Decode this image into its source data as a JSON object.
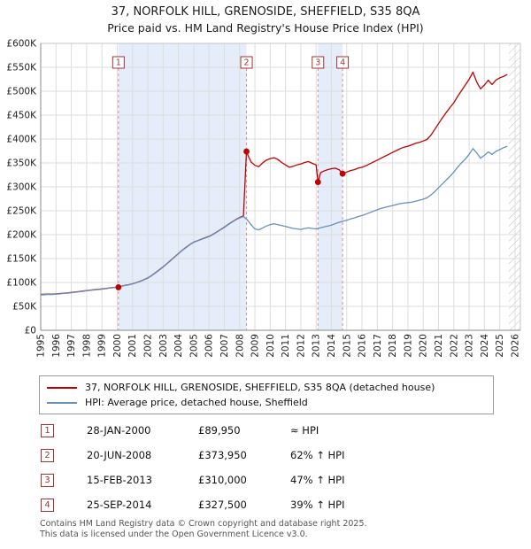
{
  "title": "37, NORFOLK HILL, GRENOSIDE, SHEFFIELD, S35 8QA",
  "subtitle": "Price paid vs. HM Land Registry's House Price Index (HPI)",
  "colors": {
    "property": "#c00000",
    "hpi": "#6590bf",
    "sale_box": "#a33333",
    "band": "#e4edf9",
    "hatch": "#bbbbbb",
    "grid": "#dddddd",
    "dashed_sale_line": "#d89090"
  },
  "chart_data": {
    "type": "line",
    "title": "Price paid vs. HM Land Registry's House Price Index (HPI)",
    "y_unit": "GBP thousands",
    "x_axis": {
      "min": 1995,
      "max": 2026.35,
      "ticks": [
        1995,
        1996,
        1997,
        1998,
        1999,
        2000,
        2001,
        2002,
        2003,
        2004,
        2005,
        2006,
        2007,
        2008,
        2009,
        2010,
        2011,
        2012,
        2013,
        2014,
        2015,
        2016,
        2017,
        2018,
        2019,
        2020,
        2021,
        2022,
        2023,
        2024,
        2025,
        2026
      ]
    },
    "y_axis": {
      "max_k": 600,
      "step_k": 50,
      "tick_labels": [
        "£0",
        "£50K",
        "£100K",
        "£150K",
        "£200K",
        "£250K",
        "£300K",
        "£350K",
        "£400K",
        "£450K",
        "£500K",
        "£550K",
        "£600K"
      ]
    },
    "bands": [
      {
        "from": 2000.08,
        "to": 2008.45
      },
      {
        "from": 2013.12,
        "to": 2014.73
      }
    ],
    "hatch_from": 2025.6,
    "series": [
      {
        "id": "property-price",
        "name": "37, NORFOLK HILL, GRENOSIDE, SHEFFIELD, S35 8QA (detached house)",
        "color": "#c00000",
        "x": [
          1995,
          1995.25,
          1995.5,
          1995.75,
          1996,
          1996.25,
          1996.5,
          1996.75,
          1997,
          1997.25,
          1997.5,
          1997.75,
          1998,
          1998.25,
          1998.5,
          1998.75,
          1999,
          1999.25,
          1999.5,
          1999.75,
          2000.08,
          2000.25,
          2000.5,
          2000.75,
          2001,
          2001.25,
          2001.5,
          2001.75,
          2002,
          2002.25,
          2002.5,
          2002.75,
          2003,
          2003.25,
          2003.5,
          2003.75,
          2004,
          2004.25,
          2004.5,
          2004.75,
          2005,
          2005.25,
          2005.5,
          2005.75,
          2006,
          2006.25,
          2006.5,
          2006.75,
          2007,
          2007.25,
          2007.5,
          2007.75,
          2008,
          2008.25,
          2008.45,
          2008.6,
          2008.75,
          2009,
          2009.25,
          2009.5,
          2009.75,
          2010,
          2010.25,
          2010.5,
          2010.75,
          2011,
          2011.25,
          2011.5,
          2011.75,
          2012,
          2012.25,
          2012.5,
          2012.75,
          2013,
          2013.12,
          2013.3,
          2013.5,
          2013.75,
          2014,
          2014.25,
          2014.5,
          2014.73,
          2015,
          2015.25,
          2015.5,
          2015.75,
          2016,
          2016.25,
          2016.5,
          2016.75,
          2017,
          2017.25,
          2017.5,
          2017.75,
          2018,
          2018.25,
          2018.5,
          2018.75,
          2019,
          2019.25,
          2019.5,
          2019.75,
          2020,
          2020.25,
          2020.5,
          2020.75,
          2021,
          2021.25,
          2021.5,
          2021.75,
          2022,
          2022.25,
          2022.5,
          2022.75,
          2023,
          2023.25,
          2023.5,
          2023.75,
          2024,
          2024.25,
          2024.5,
          2024.75,
          2025,
          2025.25,
          2025.5
        ],
        "values": [
          75,
          75.3,
          75.8,
          75.4,
          76.2,
          76.8,
          77.6,
          78.2,
          79,
          80,
          81,
          82,
          83,
          84,
          84.8,
          85.6,
          86.4,
          87.4,
          88.6,
          89.4,
          89.95,
          92.3,
          93.8,
          95.3,
          97.3,
          99.8,
          102.5,
          106,
          109.5,
          114.5,
          120.5,
          126.5,
          132.5,
          139.5,
          146.5,
          153.5,
          160.5,
          167.5,
          173.5,
          179.5,
          184.5,
          187.5,
          190.5,
          193.5,
          196.5,
          200.5,
          205.5,
          210.5,
          215.5,
          221.5,
          226.5,
          231.5,
          236,
          239,
          373.95,
          362,
          352,
          345,
          342,
          350,
          356,
          359,
          361,
          357,
          351,
          346,
          341,
          343,
          346,
          348,
          351,
          353,
          349,
          346,
          310,
          330,
          333,
          336,
          338,
          339,
          336,
          327.5,
          331,
          334,
          336,
          339,
          341,
          344,
          348,
          352,
          356,
          360,
          364,
          368,
          372,
          376,
          380,
          383,
          385,
          388,
          391,
          393,
          396,
          399,
          408,
          420,
          432,
          444,
          455,
          466,
          476,
          489,
          501,
          513,
          525,
          540,
          519,
          505,
          513,
          523,
          514,
          523,
          528,
          531,
          535
        ]
      },
      {
        "id": "hpi",
        "name": "HPI: Average price, detached house, Sheffield",
        "color": "#6590bf",
        "x_start": 1995,
        "x_step": 0.25,
        "values": [
          74,
          74.5,
          75,
          74.8,
          75.5,
          76.2,
          77,
          77.6,
          78.5,
          79.5,
          80.5,
          81.5,
          82.5,
          83.5,
          84.3,
          85.2,
          86,
          87,
          88.2,
          89.3,
          90.5,
          92,
          93.5,
          95,
          97,
          99.5,
          102,
          105.5,
          109,
          114,
          120,
          126,
          132,
          139,
          146,
          153,
          160,
          167,
          173,
          179,
          184,
          187,
          190,
          193,
          196,
          200,
          205,
          210,
          215,
          221,
          226,
          231,
          235,
          238,
          231,
          221,
          212,
          210,
          214,
          218,
          221,
          223,
          221,
          219,
          217,
          215,
          213,
          212,
          211,
          213,
          214,
          213,
          212,
          214,
          216,
          218,
          220,
          223,
          226,
          228,
          230,
          233,
          235,
          238,
          240,
          243,
          246,
          249,
          252,
          255,
          257,
          259,
          261,
          263,
          265,
          266,
          267,
          268,
          270,
          272,
          274,
          277,
          283,
          290,
          298,
          306,
          314,
          322,
          331,
          341,
          350,
          358,
          368,
          380,
          371,
          360,
          366,
          373,
          368,
          374,
          378,
          382,
          385
        ]
      }
    ],
    "sales": [
      {
        "num": "1",
        "x": 2000.08,
        "price_k": 89.95,
        "date": "28-JAN-2000",
        "price_label": "£89,950",
        "hpi": "≈ HPI"
      },
      {
        "num": "2",
        "x": 2008.45,
        "price_k": 373.95,
        "date": "20-JUN-2008",
        "price_label": "£373,950",
        "hpi": "62% ↑ HPI"
      },
      {
        "num": "3",
        "x": 2013.12,
        "price_k": 310,
        "date": "15-FEB-2013",
        "price_label": "£310,000",
        "hpi": "47% ↑ HPI"
      },
      {
        "num": "4",
        "x": 2014.73,
        "price_k": 327.5,
        "date": "25-SEP-2014",
        "price_label": "£327,500",
        "hpi": "39% ↑ HPI"
      }
    ]
  },
  "legend": {
    "items": [
      {
        "label": "37, NORFOLK HILL, GRENOSIDE, SHEFFIELD, S35 8QA (detached house)",
        "color": "#c00000"
      },
      {
        "label": "HPI: Average price, detached house, Sheffield",
        "color": "#6590bf"
      }
    ]
  },
  "footer": {
    "line1": "Contains HM Land Registry data © Crown copyright and database right 2025.",
    "line2": "This data is licensed under the Open Government Licence v3.0."
  }
}
